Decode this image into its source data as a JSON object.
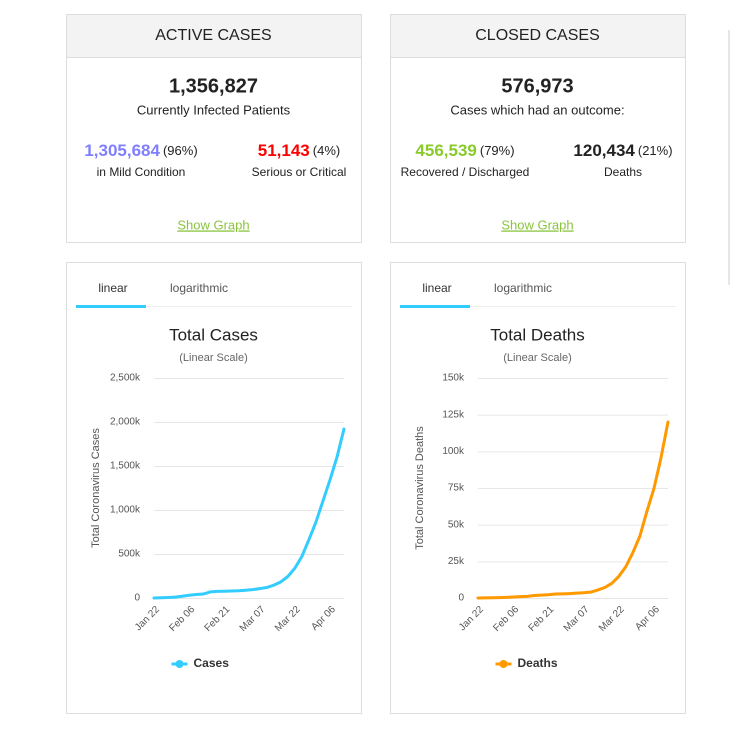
{
  "panels": [
    {
      "title": "ACTIVE CASES",
      "total": "1,356,827",
      "subtitle": "Currently Infected Patients",
      "stats": [
        {
          "value": "1,305,684",
          "share": "(96%)",
          "label": "in Mild Condition",
          "color": "#8080ff"
        },
        {
          "value": "51,143",
          "share": "(4%)",
          "label": "Serious or Critical",
          "color": "#ff0000"
        }
      ],
      "link": "Show Graph"
    },
    {
      "title": "CLOSED CASES",
      "total": "576,973",
      "subtitle": "Cases which had an outcome:",
      "stats": [
        {
          "value": "456,539",
          "share": "(79%)",
          "label": "Recovered / Discharged",
          "color": "#8aca2b"
        },
        {
          "value": "120,434",
          "share": "(21%)",
          "label": "Deaths",
          "color": "#222222"
        }
      ],
      "link": "Show Graph"
    }
  ],
  "chart_data": [
    {
      "type": "line",
      "tabs": [
        "linear",
        "logarithmic"
      ],
      "title": "Total Cases",
      "subtitle": "(Linear Scale)",
      "ylabel": "Total Coronavirus Cases",
      "categories": [
        "Jan 22",
        null,
        null,
        null,
        null,
        "Feb 06",
        null,
        null,
        null,
        null,
        "Feb 21",
        null,
        null,
        null,
        null,
        "Mar 07",
        null,
        null,
        null,
        null,
        "Mar 22",
        null,
        null,
        null,
        null,
        "Apr 06",
        null,
        null
      ],
      "series": [
        {
          "name": "Cases",
          "color": "#33ccff",
          "values": [
            0.6,
            2.8,
            5.6,
            9.9,
            20,
            31,
            40,
            45,
            69,
            75,
            77,
            80,
            83,
            88,
            95,
            106,
            119,
            145,
            182,
            243,
            337,
            470,
            660,
            860,
            1100,
            1340,
            1600,
            1920
          ]
        }
      ],
      "ylim": [
        0,
        2500
      ],
      "yticks": [
        0,
        {
          "value": 500,
          "label": "500k"
        },
        {
          "value": 1000,
          "label": "1,000k"
        },
        {
          "value": 1500,
          "label": "1,500k"
        },
        {
          "value": 2000,
          "label": "2,000k"
        },
        {
          "value": 2500,
          "label": "2,500k"
        }
      ],
      "grid": true,
      "legend": "bottom"
    },
    {
      "type": "line",
      "tabs": [
        "linear",
        "logarithmic"
      ],
      "title": "Total Deaths",
      "subtitle": "(Linear Scale)",
      "ylabel": "Total Coronavirus Deaths",
      "categories": [
        "Jan 22",
        null,
        null,
        null,
        null,
        "Feb 06",
        null,
        null,
        null,
        null,
        "Feb 21",
        null,
        null,
        null,
        null,
        "Mar 07",
        null,
        null,
        null,
        null,
        "Mar 22",
        null,
        null,
        null,
        null,
        "Apr 06",
        null,
        null
      ],
      "series": [
        {
          "name": "Deaths",
          "color": "#ff9900",
          "values": [
            0.017,
            0.056,
            0.13,
            0.26,
            0.43,
            0.64,
            0.91,
            1.12,
            1.67,
            2.0,
            2.25,
            2.7,
            2.8,
            3.0,
            3.3,
            3.6,
            4.0,
            5.4,
            7.1,
            9.9,
            14.7,
            21.3,
            30.9,
            42.1,
            59,
            74.6,
            95.5,
            120
          ]
        }
      ],
      "ylim": [
        0,
        150
      ],
      "yticks": [
        0,
        {
          "value": 25,
          "label": "25k"
        },
        {
          "value": 50,
          "label": "50k"
        },
        {
          "value": 75,
          "label": "75k"
        },
        {
          "value": 100,
          "label": "100k"
        },
        {
          "value": 125,
          "label": "125k"
        },
        {
          "value": 150,
          "label": "150k"
        }
      ],
      "grid": true,
      "legend": "bottom"
    }
  ]
}
